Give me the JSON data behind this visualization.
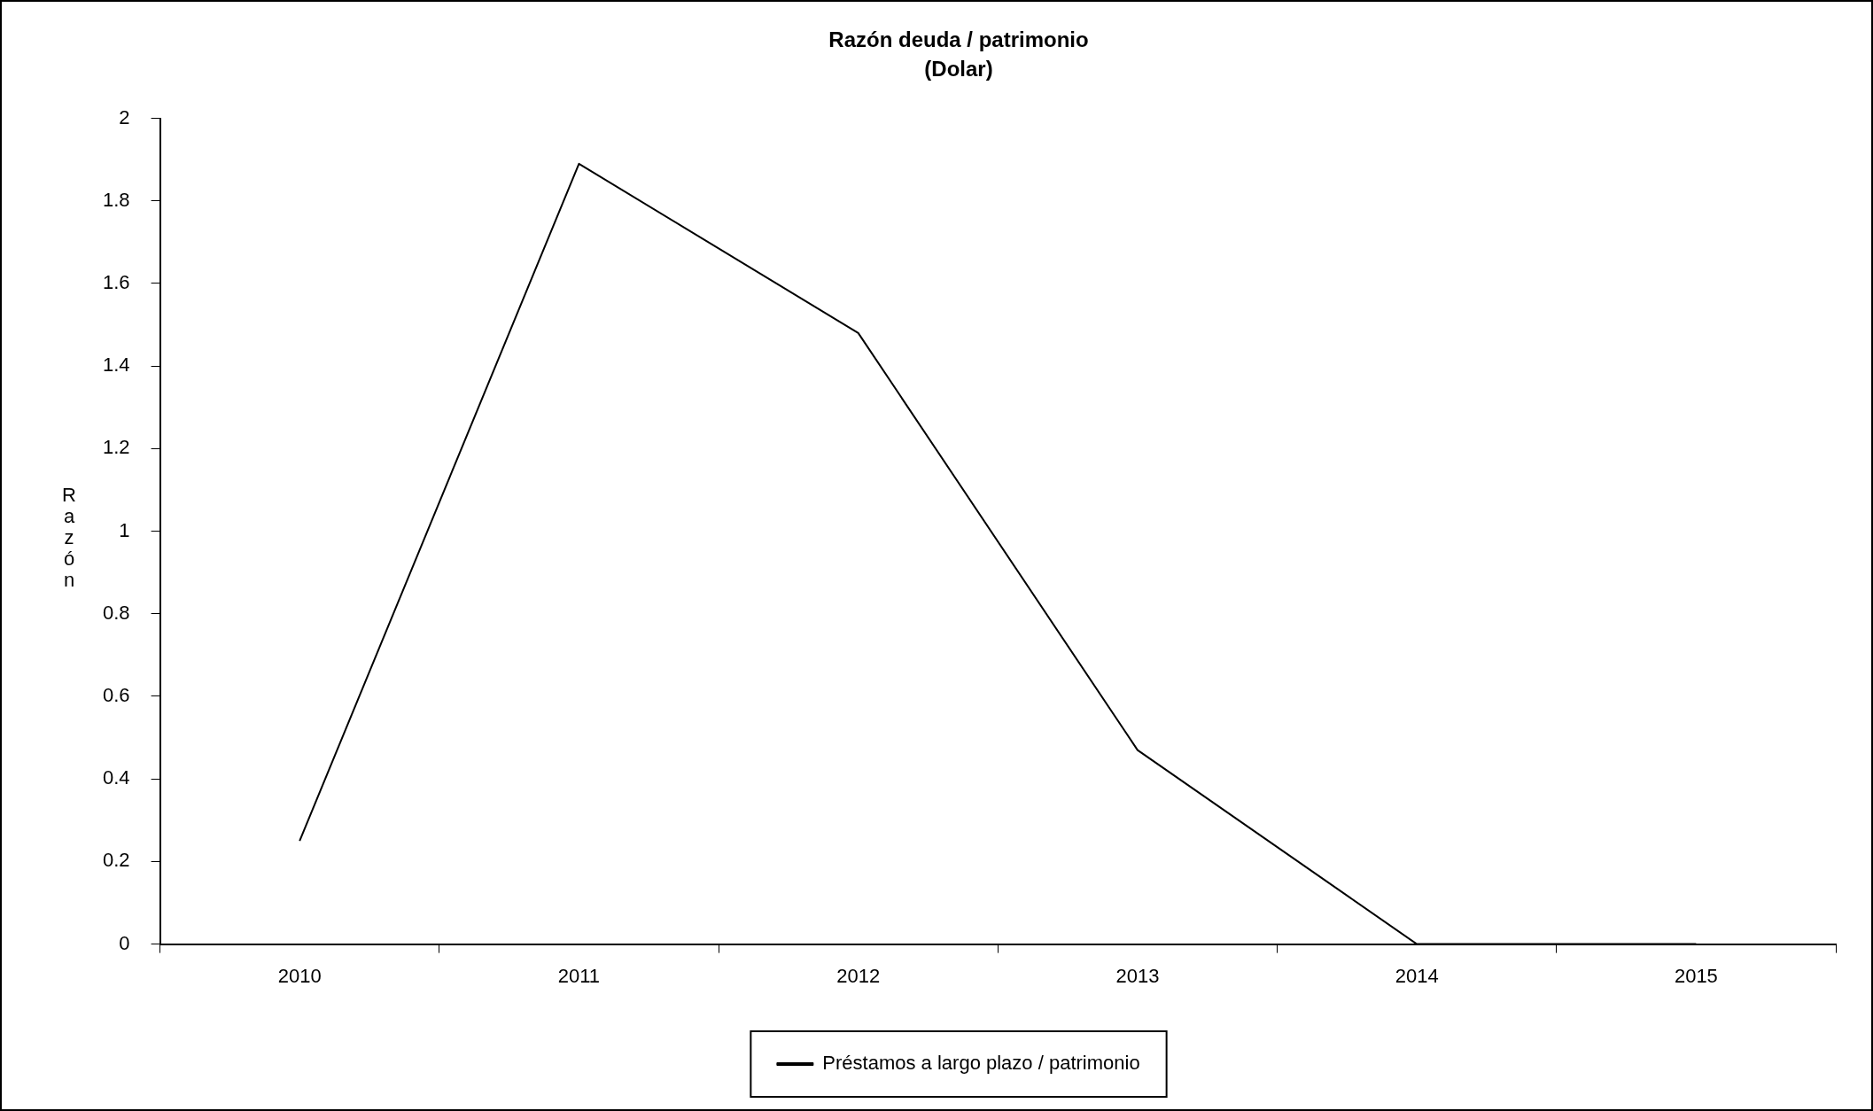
{
  "chart_data": {
    "type": "line",
    "title": "Razón deuda / patrimonio",
    "subtitle": "(Dolar)",
    "ylabel": "Razón",
    "categories": [
      "2010",
      "2011",
      "2012",
      "2013",
      "2014",
      "2015"
    ],
    "series": [
      {
        "name": "Préstamos a largo plazo / patrimonio",
        "color": "#000000",
        "values": [
          0.25,
          1.89,
          1.48,
          0.47,
          0,
          0
        ]
      }
    ],
    "ylim": [
      0,
      2
    ],
    "yticks": [
      0,
      0.2,
      0.4,
      0.6,
      0.8,
      1,
      1.2,
      1.4,
      1.6,
      1.8,
      2
    ],
    "grid": false,
    "legend": "bottom",
    "marker": "none",
    "line_style": "solid"
  }
}
